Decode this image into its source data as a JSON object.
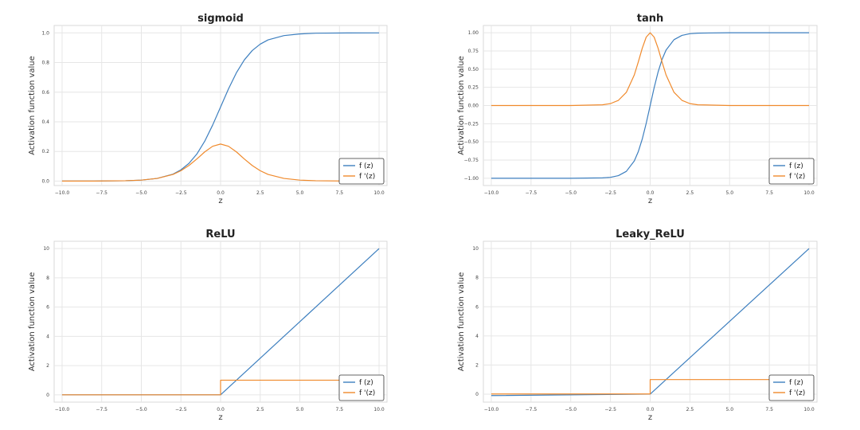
{
  "chart_data": [
    {
      "type": "line",
      "title": "sigmoid",
      "xlabel": "z",
      "ylabel": "Activation function value",
      "xlim": [
        -10.5,
        10.5
      ],
      "ylim": [
        -0.03,
        1.05
      ],
      "xticks": [
        -10.0,
        -7.5,
        -5.0,
        -2.5,
        0.0,
        2.5,
        5.0,
        7.5,
        10.0
      ],
      "xtick_labels": [
        "−10.0",
        "−7.5",
        "−5.0",
        "−2.5",
        "0.0",
        "2.5",
        "5.0",
        "7.5",
        "10.0"
      ],
      "yticks": [
        0.0,
        0.2,
        0.4,
        0.6,
        0.8,
        1.0
      ],
      "ytick_labels": [
        "0.0",
        "0.2",
        "0.4",
        "0.6",
        "0.8",
        "1.0"
      ],
      "grid": true,
      "legend": "lower-right",
      "series": [
        {
          "name": "f (z)",
          "color": "#3d7fbf",
          "x": [
            -10,
            -8,
            -6,
            -5,
            -4,
            -3,
            -2.5,
            -2,
            -1.5,
            -1,
            -0.5,
            0,
            0.5,
            1,
            1.5,
            2,
            2.5,
            3,
            4,
            5,
            6,
            8,
            10
          ],
          "y": [
            5e-05,
            0.0003,
            0.0025,
            0.0067,
            0.018,
            0.047,
            0.076,
            0.119,
            0.182,
            0.269,
            0.378,
            0.5,
            0.622,
            0.731,
            0.818,
            0.881,
            0.924,
            0.953,
            0.982,
            0.993,
            0.998,
            0.9997,
            1.0
          ]
        },
        {
          "name": "f '(z)",
          "color": "#f08a2c",
          "x": [
            -10,
            -8,
            -6,
            -5,
            -4,
            -3,
            -2.5,
            -2,
            -1.5,
            -1,
            -0.5,
            0,
            0.5,
            1,
            1.5,
            2,
            2.5,
            3,
            4,
            5,
            6,
            8,
            10
          ],
          "y": [
            5e-05,
            0.0003,
            0.0025,
            0.0066,
            0.018,
            0.045,
            0.07,
            0.105,
            0.149,
            0.197,
            0.235,
            0.25,
            0.235,
            0.197,
            0.149,
            0.105,
            0.07,
            0.045,
            0.018,
            0.0066,
            0.0025,
            0.0003,
            5e-05
          ]
        }
      ]
    },
    {
      "type": "line",
      "title": "tanh",
      "xlabel": "z",
      "ylabel": "Activation function value",
      "xlim": [
        -10.5,
        10.5
      ],
      "ylim": [
        -1.1,
        1.1
      ],
      "xticks": [
        -10.0,
        -7.5,
        -5.0,
        -2.5,
        0.0,
        2.5,
        5.0,
        7.5,
        10.0
      ],
      "xtick_labels": [
        "−10.0",
        "−7.5",
        "−5.0",
        "−2.5",
        "0.0",
        "2.5",
        "5.0",
        "7.5",
        "10.0"
      ],
      "yticks": [
        -1.0,
        -0.75,
        -0.5,
        -0.25,
        0.0,
        0.25,
        0.5,
        0.75,
        1.0
      ],
      "ytick_labels": [
        "−1.00",
        "−0.75",
        "−0.50",
        "−0.25",
        "0.00",
        "0.25",
        "0.50",
        "0.75",
        "1.00"
      ],
      "grid": true,
      "legend": "lower-right",
      "series": [
        {
          "name": "f (z)",
          "color": "#3d7fbf",
          "x": [
            -10,
            -5,
            -3,
            -2.5,
            -2,
            -1.5,
            -1,
            -0.75,
            -0.5,
            -0.25,
            0,
            0.25,
            0.5,
            0.75,
            1,
            1.5,
            2,
            2.5,
            3,
            5,
            10
          ],
          "y": [
            -1.0,
            -0.9999,
            -0.995,
            -0.987,
            -0.964,
            -0.905,
            -0.762,
            -0.635,
            -0.462,
            -0.245,
            0.0,
            0.245,
            0.462,
            0.635,
            0.762,
            0.905,
            0.964,
            0.987,
            0.995,
            0.9999,
            1.0
          ]
        },
        {
          "name": "f '(z)",
          "color": "#f08a2c",
          "x": [
            -10,
            -5,
            -3,
            -2.5,
            -2,
            -1.5,
            -1,
            -0.75,
            -0.5,
            -0.25,
            0,
            0.25,
            0.5,
            0.75,
            1,
            1.5,
            2,
            2.5,
            3,
            5,
            10
          ],
          "y": [
            0.0,
            0.0002,
            0.0099,
            0.026,
            0.071,
            0.181,
            0.42,
            0.597,
            0.786,
            0.94,
            1.0,
            0.94,
            0.786,
            0.597,
            0.42,
            0.181,
            0.071,
            0.026,
            0.0099,
            0.0002,
            0.0
          ]
        }
      ]
    },
    {
      "type": "line",
      "title": "ReLU",
      "xlabel": "z",
      "ylabel": "Activation function value",
      "xlim": [
        -10.5,
        10.5
      ],
      "ylim": [
        -0.5,
        10.5
      ],
      "xticks": [
        -10.0,
        -7.5,
        -5.0,
        -2.5,
        0.0,
        2.5,
        5.0,
        7.5,
        10.0
      ],
      "xtick_labels": [
        "−10.0",
        "−7.5",
        "−5.0",
        "−2.5",
        "0.0",
        "2.5",
        "5.0",
        "7.5",
        "10.0"
      ],
      "yticks": [
        0,
        2,
        4,
        6,
        8,
        10
      ],
      "ytick_labels": [
        "0",
        "2",
        "4",
        "6",
        "8",
        "10"
      ],
      "grid": true,
      "legend": "lower-right",
      "series": [
        {
          "name": "f (z)",
          "color": "#3d7fbf",
          "x": [
            -10,
            0,
            10
          ],
          "y": [
            0,
            0,
            10
          ]
        },
        {
          "name": "f '(z)",
          "color": "#f08a2c",
          "x": [
            -10,
            0,
            0,
            10
          ],
          "y": [
            0,
            0,
            1,
            1
          ]
        }
      ]
    },
    {
      "type": "line",
      "title": "Leaky_ReLU",
      "xlabel": "z",
      "ylabel": "Activation function value",
      "xlim": [
        -10.5,
        10.5
      ],
      "ylim": [
        -0.55,
        10.5
      ],
      "xticks": [
        -10.0,
        -7.5,
        -5.0,
        -2.5,
        0.0,
        2.5,
        5.0,
        7.5,
        10.0
      ],
      "xtick_labels": [
        "−10.0",
        "−7.5",
        "−5.0",
        "−2.5",
        "0.0",
        "2.5",
        "5.0",
        "7.5",
        "10.0"
      ],
      "yticks": [
        0,
        2,
        4,
        6,
        8,
        10
      ],
      "ytick_labels": [
        "0",
        "2",
        "4",
        "6",
        "8",
        "10"
      ],
      "grid": true,
      "legend": "lower-right",
      "series": [
        {
          "name": "f (z)",
          "color": "#3d7fbf",
          "x": [
            -10,
            0,
            10
          ],
          "y": [
            -0.1,
            0,
            10
          ]
        },
        {
          "name": "f '(z)",
          "color": "#f08a2c",
          "x": [
            -10,
            0,
            0,
            10
          ],
          "y": [
            0.01,
            0.01,
            1,
            1
          ]
        }
      ]
    }
  ]
}
